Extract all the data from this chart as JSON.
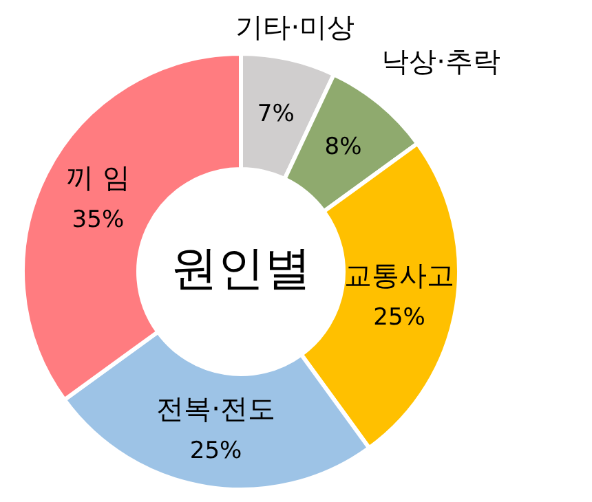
{
  "chart_data": {
    "type": "donut",
    "title": "원인별",
    "categories": [
      "기타·미상",
      "낙상·추락",
      "교통사고",
      "전복·전도",
      "끼 임"
    ],
    "values": [
      7,
      8,
      25,
      25,
      35
    ],
    "colors": [
      "#d0cece",
      "#8faa6e",
      "#ffc000",
      "#9dc3e6",
      "#ff7c80"
    ],
    "value_labels": [
      "7%",
      "8%",
      "25%",
      "25%",
      "35%"
    ],
    "legend": false
  }
}
